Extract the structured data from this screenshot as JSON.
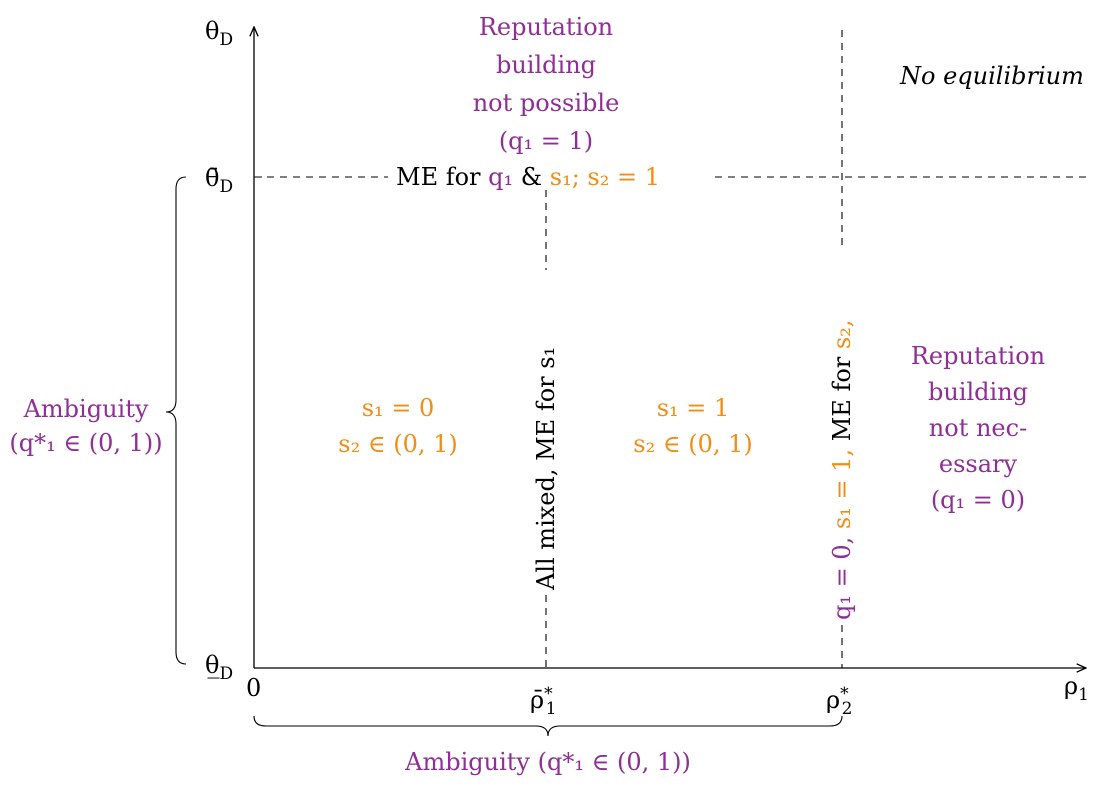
{
  "axes": {
    "y_label": "θ",
    "y_label_sub": "D",
    "x_label": "ρ",
    "x_label_sub": "1",
    "y_ticks": {
      "upper": "θ̄",
      "upper_sub": "D",
      "lower": "θ̲",
      "lower_sub": "D"
    },
    "x_ticks": {
      "origin": "0",
      "rho1_star": "ρ̄",
      "rho1_star_sup": "*",
      "rho1_star_sub": "1",
      "rho2_star": "ρ",
      "rho2_star_sup": "*",
      "rho2_star_sub": "2"
    }
  },
  "regions": {
    "top_middle": [
      "Reputation",
      "building",
      "not possible",
      "(q₁  =  1)"
    ],
    "top_right": "No equilibrium",
    "right": [
      "Reputation",
      "building",
      "not nec-",
      "essary",
      "(q₁  =  0)"
    ],
    "left_region": [
      "s₁ = 0",
      "s₂ ∈ (0, 1)"
    ],
    "middle_region": [
      "s₁ = 1",
      "s₂ ∈ (0, 1)"
    ]
  },
  "boundaries": {
    "horizontal": {
      "part1": "ME for ",
      "part2": "q₁",
      "part3": " & ",
      "part4": "s₁; s₂ = 1"
    },
    "vertical_middle": {
      "part1": "All mixed, ME for ",
      "part2": "s₁"
    },
    "vertical_right": {
      "part1": "q₁ = 0,",
      "part2": " s₁ = 1,",
      "part3": " ME for ",
      "part4": "s₂,"
    }
  },
  "braces": {
    "left": [
      "Ambiguity",
      "(q*₁ ∈ (0, 1))"
    ],
    "bottom": "Ambiguity (q*₁ ∈ (0, 1))"
  },
  "colors": {
    "purple": "#8f2e96",
    "orange": "#f28c12",
    "axis": "#000000"
  }
}
